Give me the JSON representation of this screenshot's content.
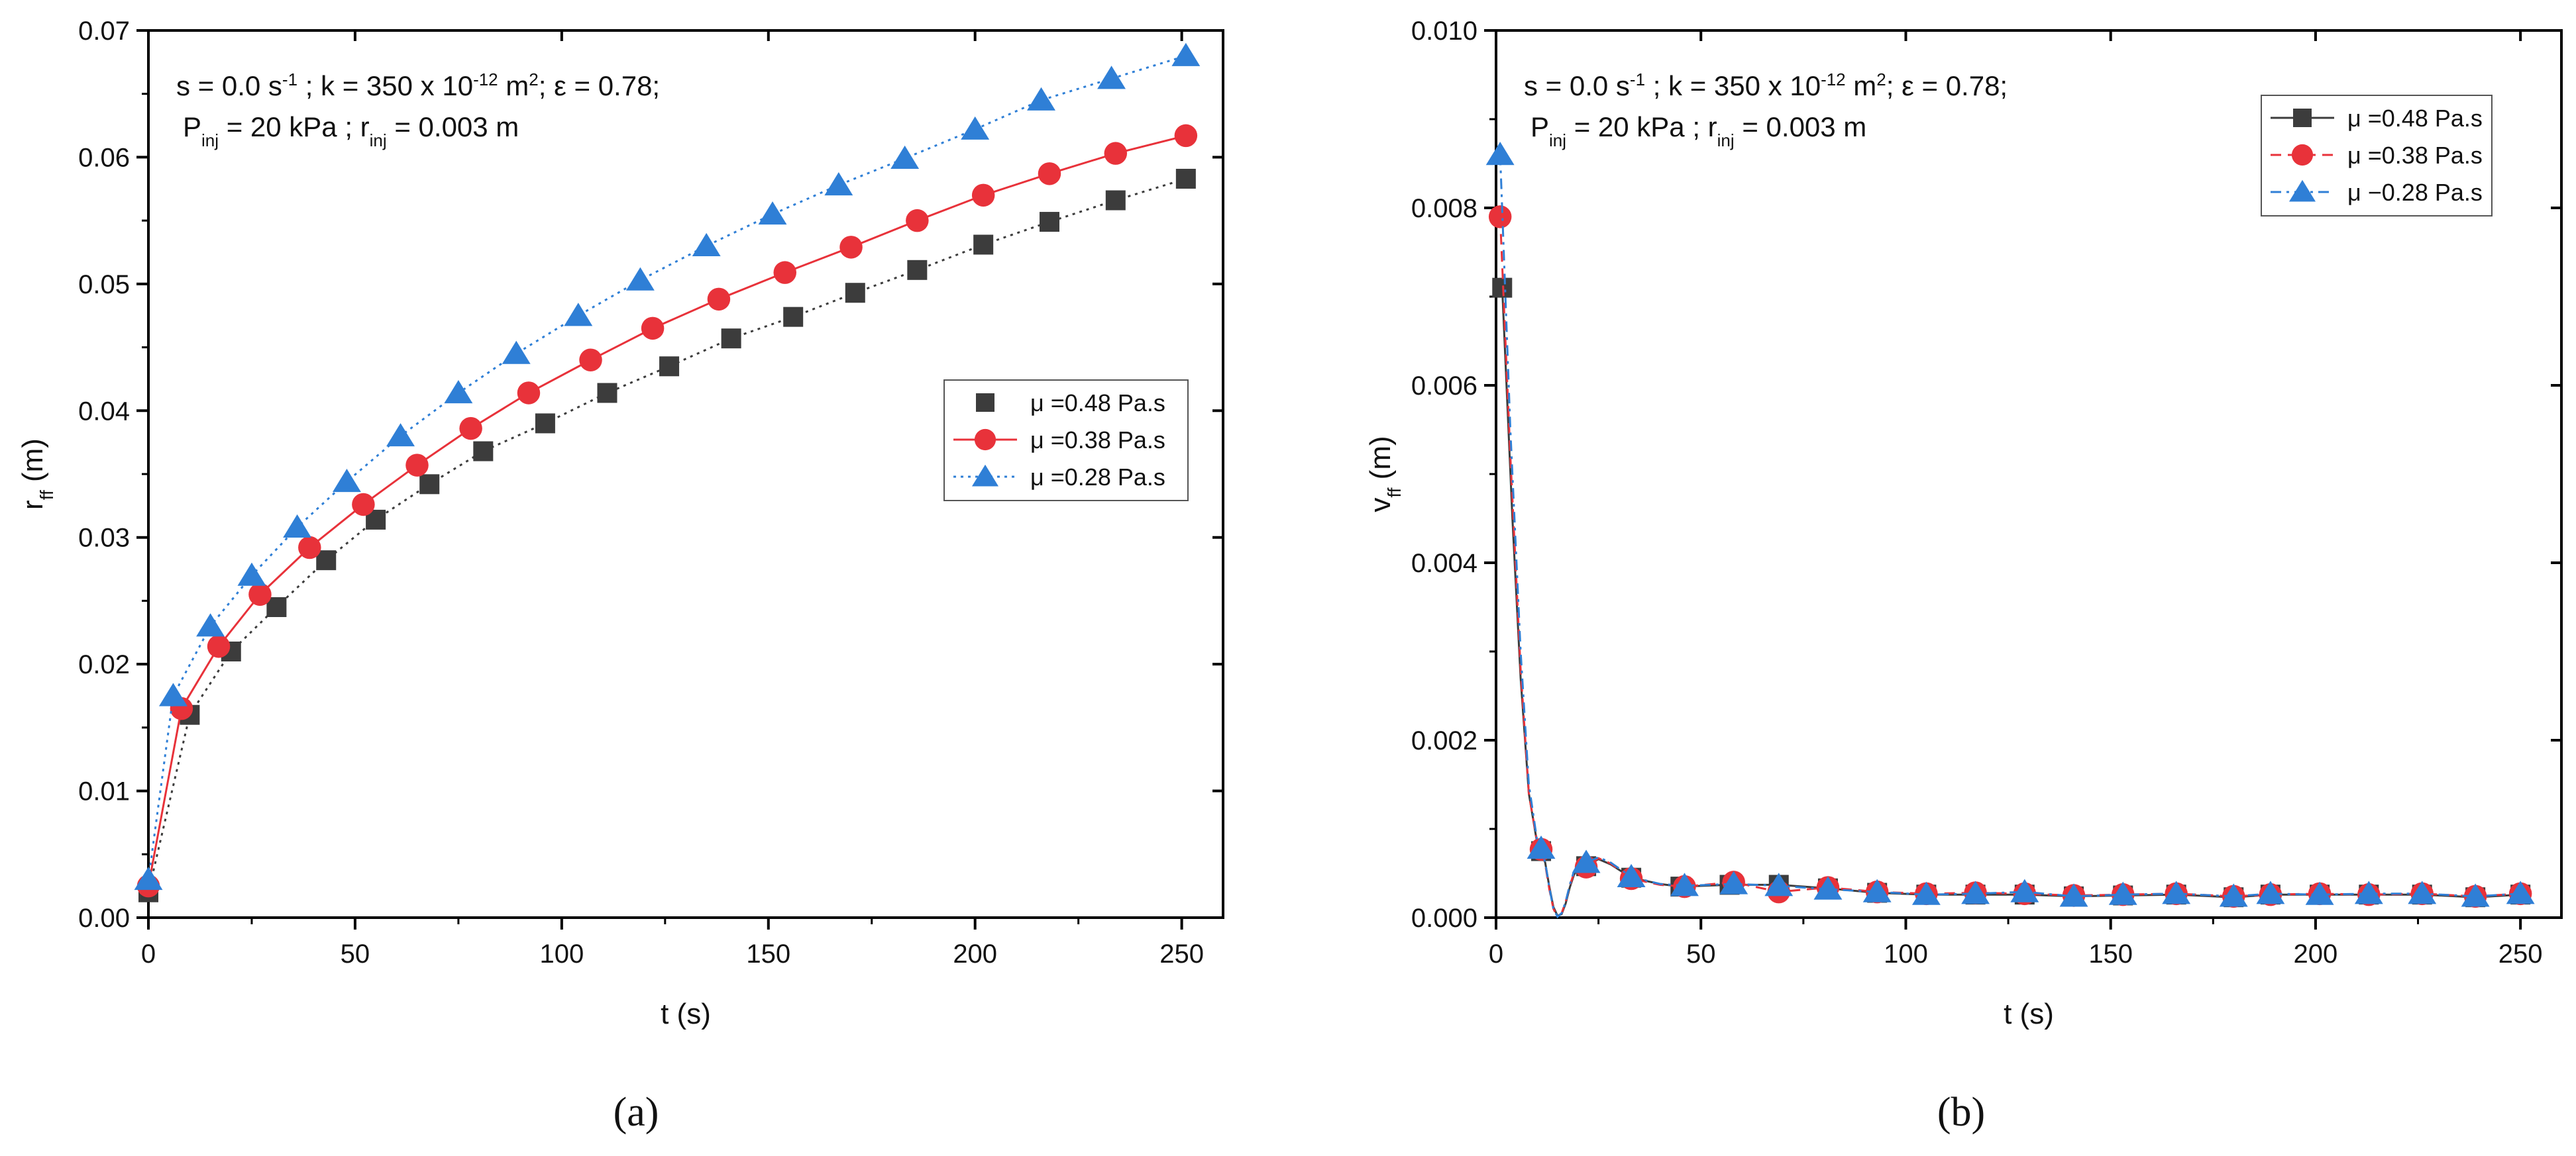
{
  "colors": {
    "series_1": "#3c3c3c",
    "series_2": "#e8323a",
    "series_3": "#2f7fd6",
    "axis": "#000000"
  },
  "chart_data": [
    {
      "type": "line",
      "panel_label": "(a)",
      "xlabel": "t (s)",
      "ylabel": {
        "main": "r",
        "sub": "ff",
        "tail": " (m)"
      },
      "xlim": [
        0,
        260
      ],
      "ylim": [
        0,
        0.07
      ],
      "xticks": [
        0,
        50,
        100,
        150,
        200,
        250
      ],
      "yticks": [
        0.0,
        0.01,
        0.02,
        0.03,
        0.04,
        0.05,
        0.06,
        0.07
      ],
      "ytick_labels": [
        "0.00",
        "0.01",
        "0.02",
        "0.03",
        "0.04",
        "0.05",
        "0.06",
        "0.07"
      ],
      "grid": false,
      "legend_position": "center-right",
      "annotation": {
        "line1": [
          {
            "t": "s = 0.0 s"
          },
          {
            "t": "-1",
            "sup": true
          },
          {
            "t": " ; k = 350 x 10"
          },
          {
            "t": "-12",
            "sup": true
          },
          {
            "t": " m"
          },
          {
            "t": "2",
            "sup": true
          },
          {
            "t": "; ε = 0.78;"
          }
        ],
        "line2": [
          {
            "t": "P"
          },
          {
            "t": "inj",
            "sub": true
          },
          {
            "t": " = 20 kPa ; r"
          },
          {
            "t": "inj",
            "sub": true
          },
          {
            "t": " = 0.003 m"
          }
        ]
      },
      "series": [
        {
          "name": "μ =0.48 Pa.s",
          "marker": "square",
          "dash": "dot",
          "x": [
            0,
            10,
            20,
            31,
            43,
            55,
            68,
            81,
            96,
            111,
            126,
            141,
            156,
            171,
            186,
            202,
            218,
            234,
            251
          ],
          "y": [
            0.002,
            0.016,
            0.021,
            0.0245,
            0.0282,
            0.0314,
            0.0342,
            0.0368,
            0.039,
            0.0414,
            0.0435,
            0.0457,
            0.0474,
            0.0493,
            0.0511,
            0.0531,
            0.0549,
            0.0566,
            0.0583
          ]
        },
        {
          "name": "μ =0.38 Pa.s",
          "marker": "circle",
          "dash": "none",
          "x": [
            0,
            8,
            17,
            27,
            39,
            52,
            65,
            78,
            92,
            107,
            122,
            138,
            154,
            170,
            186,
            202,
            218,
            234,
            251
          ],
          "y": [
            0.0025,
            0.0165,
            0.0214,
            0.0255,
            0.0292,
            0.0326,
            0.0357,
            0.0386,
            0.0414,
            0.044,
            0.0465,
            0.0488,
            0.0509,
            0.0529,
            0.055,
            0.057,
            0.0587,
            0.0603,
            0.0617
          ]
        },
        {
          "name": "μ =0.28 Pa.s",
          "marker": "triangle",
          "dash": "dot",
          "x": [
            0,
            6,
            15,
            25,
            36,
            48,
            61,
            75,
            89,
            104,
            119,
            135,
            151,
            167,
            183,
            200,
            216,
            233,
            251
          ],
          "y": [
            0.003,
            0.0175,
            0.023,
            0.027,
            0.0308,
            0.0344,
            0.038,
            0.0414,
            0.0445,
            0.0475,
            0.0503,
            0.053,
            0.0555,
            0.0578,
            0.0599,
            0.0622,
            0.0645,
            0.0662,
            0.068
          ]
        }
      ]
    },
    {
      "type": "line",
      "panel_label": "(b)",
      "xlabel": "t (s)",
      "ylabel": {
        "main": "v",
        "sub": "ff",
        "tail": " (m)"
      },
      "xlim": [
        0,
        260
      ],
      "ylim": [
        0,
        0.01
      ],
      "xticks": [
        0,
        50,
        100,
        150,
        200,
        250
      ],
      "yticks": [
        0.0,
        0.002,
        0.004,
        0.006,
        0.008,
        0.01
      ],
      "ytick_labels": [
        "0.000",
        "0.002",
        "0.004",
        "0.006",
        "0.008",
        "0.010"
      ],
      "grid": false,
      "legend_position": "top-right",
      "annotation": {
        "line1": [
          {
            "t": "s = 0.0 s"
          },
          {
            "t": "-1",
            "sup": true
          },
          {
            "t": " ; k = 350 x 10"
          },
          {
            "t": "-12",
            "sup": true
          },
          {
            "t": " m"
          },
          {
            "t": "2",
            "sup": true
          },
          {
            "t": "; ε = 0.78;"
          }
        ],
        "line2": [
          {
            "t": "P"
          },
          {
            "t": "inj",
            "sub": true
          },
          {
            "t": " = 20 kPa ; r"
          },
          {
            "t": "inj",
            "sub": true
          },
          {
            "t": " = 0.003 m"
          }
        ]
      },
      "series": [
        {
          "name": "μ =0.48 Pa.s",
          "marker": "square",
          "dash": "none",
          "x": [
            1.5,
            11,
            22,
            33,
            45,
            57,
            69,
            81,
            93,
            105,
            117,
            129,
            141,
            153,
            166,
            180,
            189,
            201,
            213,
            226,
            239,
            250
          ],
          "y": [
            0.0071,
            0.00075,
            0.00058,
            0.00045,
            0.00035,
            0.00037,
            0.00037,
            0.00033,
            0.00028,
            0.00026,
            0.00026,
            0.00026,
            0.00024,
            0.00025,
            0.00026,
            0.00023,
            0.00026,
            0.00026,
            0.00026,
            0.00026,
            0.00023,
            0.00026
          ],
          "curve_x": [
            1.5,
            4,
            6,
            8,
            10,
            11,
            12,
            13,
            14,
            15,
            16,
            17,
            18,
            19,
            20,
            22,
            25,
            28,
            33,
            40,
            45,
            57,
            69,
            81,
            93,
            105,
            117,
            129,
            141,
            153,
            166,
            180,
            189,
            201,
            213,
            226,
            239,
            250
          ],
          "curve_y": [
            0.0071,
            0.0045,
            0.0027,
            0.0014,
            0.00085,
            0.00075,
            0.00062,
            0.00035,
            0.00012,
            2e-05,
            4e-05,
            0.00016,
            0.00034,
            0.00048,
            0.00056,
            0.00058,
            0.00066,
            0.0006,
            0.00045,
            0.00038,
            0.00035,
            0.00037,
            0.00037,
            0.00033,
            0.00028,
            0.00026,
            0.00026,
            0.00026,
            0.00024,
            0.00025,
            0.00026,
            0.00023,
            0.00026,
            0.00026,
            0.00026,
            0.00026,
            0.00023,
            0.00026
          ]
        },
        {
          "name": "μ =0.38 Pa.s",
          "marker": "circle",
          "dash": "dash",
          "x": [
            1,
            11,
            22,
            33,
            46,
            58,
            69,
            81,
            93,
            105,
            117,
            129,
            141,
            153,
            166,
            180,
            189,
            201,
            213,
            226,
            239,
            250
          ],
          "y": [
            0.0079,
            0.00077,
            0.00057,
            0.00044,
            0.00035,
            0.0004,
            0.00029,
            0.00034,
            0.00029,
            0.00027,
            0.00028,
            0.00027,
            0.00025,
            0.00026,
            0.00027,
            0.00024,
            0.00026,
            0.00027,
            0.00026,
            0.00027,
            0.00024,
            0.00027
          ],
          "curve_x": [
            1,
            3.5,
            6,
            8,
            10,
            11,
            12,
            13,
            14,
            15,
            16,
            17,
            18,
            19,
            20,
            22,
            25,
            28,
            33,
            40,
            46,
            58,
            69,
            81,
            93,
            105,
            117,
            129,
            141,
            153,
            166,
            180,
            189,
            201,
            213,
            226,
            239,
            250
          ],
          "curve_y": [
            0.0079,
            0.0052,
            0.0028,
            0.0014,
            0.00086,
            0.00077,
            0.0006,
            0.00032,
            0.0001,
            1e-05,
            5e-05,
            0.00018,
            0.00036,
            0.0005,
            0.00056,
            0.00057,
            0.00067,
            0.00061,
            0.00044,
            0.00037,
            0.00035,
            0.0004,
            0.00029,
            0.00034,
            0.00029,
            0.00027,
            0.00028,
            0.00027,
            0.00025,
            0.00026,
            0.00027,
            0.00024,
            0.00026,
            0.00027,
            0.00026,
            0.00027,
            0.00024,
            0.00027
          ]
        },
        {
          "name": "μ −0.28 Pa.s",
          "marker": "triangle",
          "dash": "dashdot",
          "x": [
            1,
            11,
            22,
            33,
            46,
            58,
            69,
            81,
            93,
            105,
            117,
            129,
            141,
            153,
            166,
            180,
            189,
            201,
            213,
            226,
            239,
            250
          ],
          "y": [
            0.0086,
            0.00078,
            0.00062,
            0.00046,
            0.00036,
            0.00038,
            0.00036,
            0.00032,
            0.00029,
            0.00026,
            0.00027,
            0.00029,
            0.00024,
            0.00026,
            0.00027,
            0.00024,
            0.00027,
            0.00026,
            0.00027,
            0.00027,
            0.00024,
            0.00027
          ],
          "curve_x": [
            1,
            3.5,
            6,
            8,
            10,
            11,
            12,
            13,
            14,
            15,
            16,
            17,
            18,
            19,
            20,
            22,
            25,
            28,
            33,
            40,
            46,
            58,
            69,
            81,
            93,
            105,
            117,
            129,
            141,
            153,
            166,
            180,
            189,
            201,
            213,
            226,
            239,
            250
          ],
          "curve_y": [
            0.0086,
            0.0055,
            0.003,
            0.0015,
            0.00088,
            0.00078,
            0.00062,
            0.00034,
            0.0001,
            1e-05,
            5e-05,
            0.00018,
            0.00037,
            0.00052,
            0.0006,
            0.00062,
            0.00068,
            0.00062,
            0.00046,
            0.00038,
            0.00036,
            0.00038,
            0.00036,
            0.00032,
            0.00029,
            0.00026,
            0.00027,
            0.00029,
            0.00024,
            0.00026,
            0.00027,
            0.00024,
            0.00027,
            0.00026,
            0.00027,
            0.00027,
            0.00024,
            0.00027
          ]
        }
      ]
    }
  ]
}
